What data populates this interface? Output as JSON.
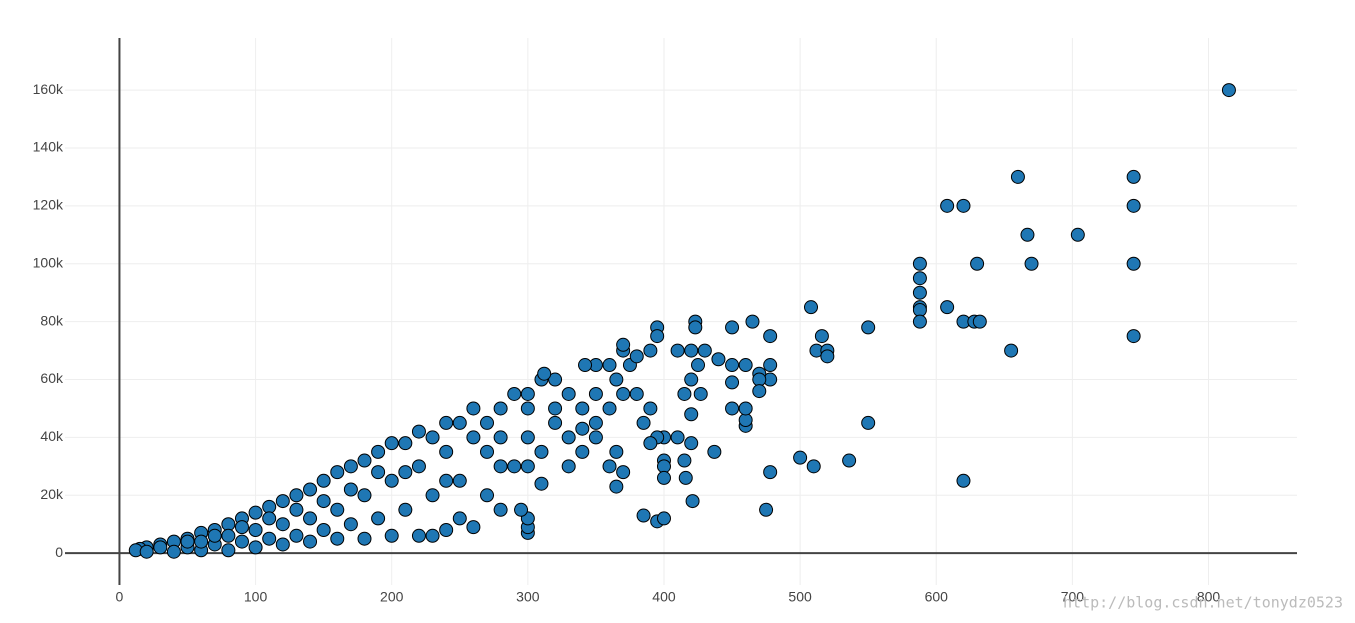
{
  "chart_data": {
    "type": "scatter",
    "x": [
      815,
      660,
      745,
      608,
      620,
      745,
      667,
      704,
      588,
      630,
      670,
      745,
      588,
      588,
      588,
      588,
      608,
      588,
      508,
      620,
      628,
      632,
      550,
      516,
      745,
      478,
      655,
      512,
      520,
      520,
      465,
      450,
      423,
      423,
      395,
      395,
      620,
      550,
      536,
      500,
      510,
      478,
      475,
      421,
      385,
      395,
      400,
      460,
      460,
      460,
      450,
      437,
      478,
      478,
      460,
      450,
      470,
      470,
      470,
      450,
      430,
      420,
      410,
      440,
      425,
      427,
      420,
      415,
      400,
      400,
      400,
      400,
      415,
      420,
      416,
      410,
      395,
      390,
      420,
      370,
      370,
      360,
      350,
      342,
      375,
      380,
      390,
      365,
      370,
      380,
      390,
      385,
      365,
      360,
      365,
      370,
      350,
      340,
      330,
      310,
      300,
      300,
      300,
      295,
      300,
      310,
      320,
      312,
      300,
      290,
      280,
      270,
      260,
      250,
      240,
      230,
      220,
      210,
      200,
      190,
      180,
      170,
      160,
      150,
      140,
      130,
      120,
      110,
      100,
      90,
      80,
      70,
      60,
      50,
      40,
      30,
      20,
      15,
      12,
      20,
      40,
      60,
      80,
      100,
      120,
      140,
      160,
      180,
      200,
      220,
      230,
      240,
      260,
      280,
      250,
      270,
      290,
      310,
      330,
      340,
      320,
      330,
      280,
      250,
      230,
      210,
      190,
      170,
      150,
      130,
      110,
      90,
      70,
      50,
      200,
      180,
      160,
      140,
      120,
      100,
      80,
      60,
      220,
      240,
      260,
      280,
      300,
      300,
      320,
      350,
      360,
      350,
      340,
      270,
      240,
      210,
      190,
      170,
      150,
      130,
      110,
      90,
      70,
      50,
      30
    ],
    "values": [
      160000,
      130000,
      130000,
      120000,
      120000,
      120000,
      110000,
      110000,
      100000,
      100000,
      100000,
      100000,
      95000,
      90000,
      85000,
      84000,
      85000,
      80000,
      85000,
      80000,
      80000,
      80000,
      78000,
      75000,
      75000,
      75000,
      70000,
      70000,
      70000,
      68000,
      80000,
      78000,
      80000,
      78000,
      78000,
      75000,
      25000,
      45000,
      32000,
      33000,
      30000,
      28000,
      15000,
      18000,
      13000,
      11000,
      12000,
      44000,
      46000,
      50000,
      50000,
      35000,
      65000,
      60000,
      65000,
      65000,
      62000,
      60000,
      56000,
      59000,
      70000,
      70000,
      70000,
      67000,
      65000,
      55000,
      60000,
      55000,
      40000,
      32000,
      30000,
      26000,
      32000,
      38000,
      26000,
      40000,
      40000,
      38000,
      48000,
      70000,
      72000,
      65000,
      65000,
      65000,
      65000,
      68000,
      70000,
      60000,
      55000,
      55000,
      50000,
      45000,
      35000,
      30000,
      23000,
      28000,
      40000,
      43000,
      30000,
      24000,
      7000,
      9000,
      12000,
      15000,
      50000,
      60000,
      60000,
      62000,
      55000,
      55000,
      50000,
      45000,
      50000,
      45000,
      45000,
      40000,
      42000,
      38000,
      38000,
      35000,
      32000,
      30000,
      28000,
      25000,
      22000,
      20000,
      18000,
      16000,
      14000,
      12000,
      10000,
      8000,
      7000,
      5000,
      4000,
      3000,
      2000,
      1500,
      1000,
      500,
      500,
      1000,
      1000,
      2000,
      3000,
      4000,
      5000,
      5000,
      6000,
      6000,
      6000,
      8000,
      9000,
      15000,
      12000,
      20000,
      30000,
      35000,
      40000,
      50000,
      45000,
      55000,
      30000,
      25000,
      20000,
      15000,
      12000,
      10000,
      8000,
      6000,
      5000,
      4000,
      3000,
      2000,
      25000,
      20000,
      15000,
      12000,
      10000,
      8000,
      6000,
      4000,
      30000,
      35000,
      40000,
      40000,
      40000,
      30000,
      50000,
      55000,
      50000,
      45000,
      35000,
      35000,
      25000,
      28000,
      28000,
      22000,
      18000,
      15000,
      12000,
      9000,
      6000,
      4000,
      2000
    ],
    "color": "#1f77b4",
    "marker_edge_color": "#000000",
    "xlim": [
      -40,
      865
    ],
    "ylim": [
      -11000,
      178000
    ],
    "xticks": [
      0,
      100,
      200,
      300,
      400,
      500,
      600,
      700,
      800
    ],
    "yticks": [
      0,
      {
        "value": 20000,
        "label": "20k"
      },
      {
        "value": 40000,
        "label": "40k"
      },
      {
        "value": 60000,
        "label": "60k"
      },
      {
        "value": 80000,
        "label": "80k"
      },
      {
        "value": 100000,
        "label": "100k"
      },
      {
        "value": 120000,
        "label": "120k"
      },
      {
        "value": 140000,
        "label": "140k"
      },
      {
        "value": 160000,
        "label": "160k"
      }
    ],
    "grid": true,
    "annotation": "http://blog.csdn.net/tonydz0523"
  }
}
